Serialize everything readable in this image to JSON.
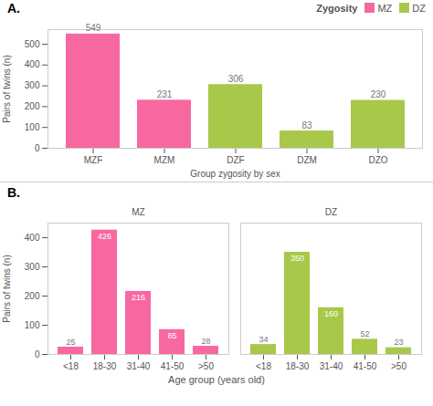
{
  "chart_data": [
    {
      "type": "bar",
      "title": "A.",
      "categories": [
        "MZF",
        "MZM",
        "DZF",
        "DZM",
        "DZO"
      ],
      "series": [
        {
          "name": "MZ",
          "color": "#F768A1",
          "values": [
            549,
            231,
            null,
            null,
            null
          ]
        },
        {
          "name": "DZ",
          "color": "#A8C84A",
          "values": [
            null,
            null,
            306,
            83,
            230
          ]
        }
      ],
      "xlabel": "Group zygosity by sex",
      "ylabel": "Pairs of twins (n)",
      "ylim": [
        0,
        570
      ],
      "yticks": [
        0,
        100,
        200,
        300,
        400,
        500
      ],
      "legend": "upper right",
      "legend_title": "Zygosity",
      "data_labels": true,
      "grid": false
    },
    {
      "type": "bar",
      "title": "MZ",
      "annotation": "B.",
      "categories": [
        "<18",
        "18-30",
        "31-40",
        "41-50",
        ">50"
      ],
      "values": [
        25,
        426,
        216,
        85,
        28
      ],
      "color": "#F768A1",
      "xlabel": "Age group (years old)",
      "ylabel": "Pairs of twins (n)",
      "ylim": [
        0,
        450
      ],
      "yticks": [
        0,
        100,
        200,
        300,
        400
      ],
      "data_labels": true,
      "grid": false
    },
    {
      "type": "bar",
      "title": "DZ",
      "categories": [
        "<18",
        "18-30",
        "31-40",
        "41-50",
        ">50"
      ],
      "values": [
        34,
        350,
        160,
        52,
        23
      ],
      "color": "#A8C84A",
      "data_labels": true
    }
  ]
}
